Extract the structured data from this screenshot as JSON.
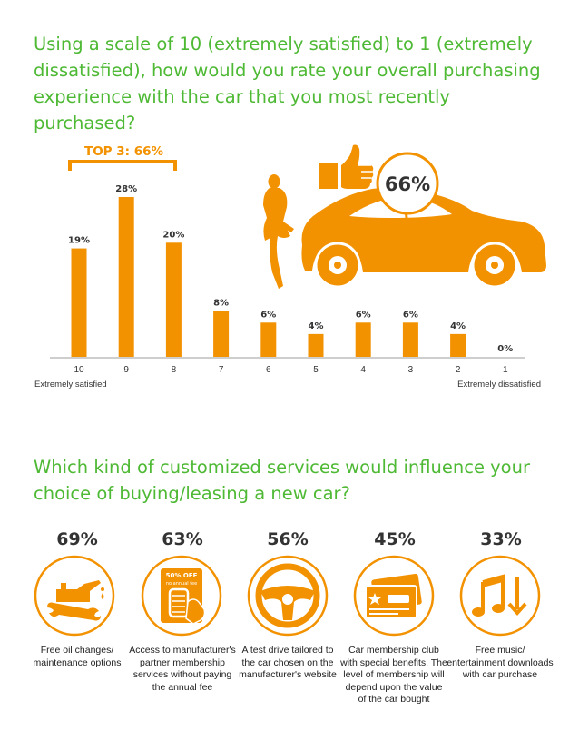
{
  "question1": "Using a scale of 10 (extremely satisfied) to 1 (extremely dissatisfied), how would you rate your overall purchasing experience with the car that you most recently purchased?",
  "question2": "Which kind of customized services would influence your choice of buying/leasing a new car?",
  "top3_label": "TOP 3: 66%",
  "badge_value": "66%",
  "colors": {
    "green": "#4eb934",
    "orange": "#f39200",
    "gray": "#9e9e9e"
  },
  "chart_data": {
    "type": "bar",
    "categories": [
      "10",
      "9",
      "8",
      "7",
      "6",
      "5",
      "4",
      "3",
      "2",
      "1"
    ],
    "values": [
      19,
      28,
      20,
      8,
      6,
      4,
      6,
      6,
      4,
      0
    ],
    "value_labels": [
      "19%",
      "28%",
      "20%",
      "8%",
      "6%",
      "4%",
      "6%",
      "6%",
      "4%",
      "0%"
    ],
    "axis_left_label": "Extremely satisfied",
    "axis_right_label": "Extremely dissatisfied",
    "ylim": [
      0,
      30
    ],
    "grid": false
  },
  "services": [
    {
      "percent": "69%",
      "caption": "Free oil changes/ maintenance options",
      "icon": "oil-can-wrench-icon"
    },
    {
      "percent": "63%",
      "caption": "Access to manufacturer's partner membership services without paying the annual fee",
      "icon": "discount-tire-hand-icon",
      "badge_top": "50% OFF",
      "badge_bottom": "no annual fee"
    },
    {
      "percent": "56%",
      "caption": "A test drive tailored to the car chosen on the manufacturer's website",
      "icon": "steering-wheel-icon"
    },
    {
      "percent": "45%",
      "caption": "Car membership club with special benefits. The level of membership will depend upon the value of the car bought",
      "icon": "membership-card-icon"
    },
    {
      "percent": "33%",
      "caption": "Free music/ entertainment downloads with car purchase",
      "icon": "music-download-icon"
    }
  ]
}
